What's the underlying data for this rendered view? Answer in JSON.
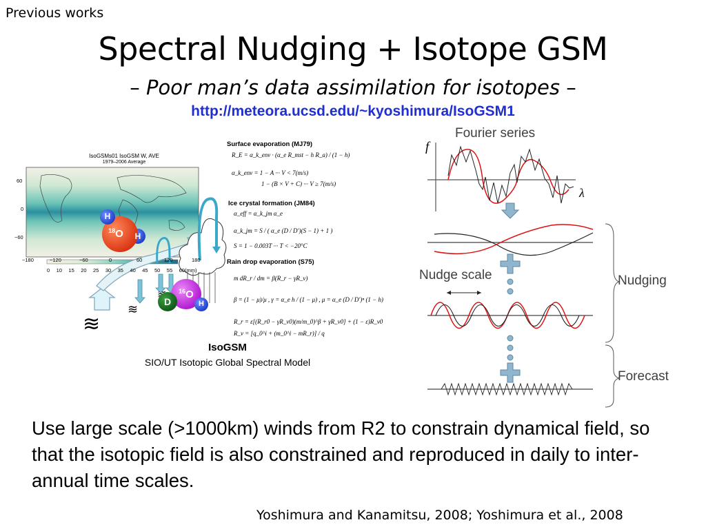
{
  "header": {
    "previous": "Previous works",
    "title": "Spectral Nudging + Isotope GSM",
    "subtitle_dash_left": "–",
    "subtitle_italic": "Poor man’s data assimilation for isotopes",
    "subtitle_dash_right": "–",
    "url": "http://meteora.ucsd.edu/~kyoshimura/IsoGSM1"
  },
  "map": {
    "title_line1": "IsoGSMs01 IsoGSM W, AVE",
    "title_line2": "1979–2006 Average",
    "lat_ticks": [
      "60",
      "0",
      "−60"
    ],
    "lon_ticks": [
      "−180",
      "−120",
      "−60",
      "0",
      "60",
      "120",
      "180"
    ],
    "colorbar_ticks": [
      "0",
      "10",
      "15",
      "20",
      "25",
      "30",
      "35",
      "40",
      "45",
      "50",
      "55",
      "60"
    ],
    "colorbar_unit": "(mm)"
  },
  "atoms": {
    "oxygen18": "O",
    "oxygen18_mass": "18",
    "hydrogen": "H",
    "oxygen16": "O",
    "oxygen16_mass": "16",
    "deuterium": "D"
  },
  "equations": {
    "surface_evap_head": "Surface evaporation (MJ79)",
    "surface_evap_1": "R_E = α_k_env · (α_e R_mst − h R_a) / (1 − h)",
    "surface_evap_2a": "α_k_env = 1 − A          ··· V < 7(m/s)",
    "surface_evap_2b": "1 − (B × V + C)     ··· V ≥ 7(m/s)",
    "ice_head": "Ice crystal formation (JM84)",
    "ice_1": "α_eff = α_k_jm α_e",
    "ice_2": "α_k_jm = S / ( α_e (D / D′)(S − 1) + 1 )",
    "ice_3": "S = 1 − 0.003T  ··· T < −20°C",
    "rain_head": "Rain drop evaporation (S75)",
    "rain_1": "m dR_r / dm = β(R_r − γR_v)",
    "rain_2": "β = (1 − μ)/μ ,  γ = α_e h / (1 − μ) ,  μ = α_e (D / D′)ⁿ (1 − h)",
    "rain_3": "R_r = ε[(R_r0 − γR_v0)(m/m_0)^β + γR_v0] + (1 − ε)R_v0",
    "rain_4": "R_v = [q_0^i + (m_0^i − mR_r)] / q"
  },
  "model": {
    "name": "IsoGSM",
    "description": "SIO/UT Isotopic Global Spectral Model"
  },
  "schematic": {
    "fourier_label": "Fourier series",
    "axis_f": "f",
    "axis_lambda": "λ",
    "nudge_scale_label": "Nudge scale",
    "nudging_label": "Nudging",
    "forecast_label": "Forecast"
  },
  "body": {
    "text": "Use large scale (>1000km) winds from R2 to constrain dynamical field, so that the isotopic field is also constrained and reproduced in daily to inter-annual time scales."
  },
  "citation": "Yoshimura and Kanamitsu, 2008; Yoshimura et al., 2008",
  "colors": {
    "url_blue": "#1f2fd0",
    "hydrogen_blue": "#2f4fd8",
    "oxygen_red": "#e8401a",
    "oxygen16_magenta": "#c61fe0",
    "deuterium_green": "#1d6e22",
    "nudge_red": "#e01010",
    "arrow_steel": "#7fa3b8"
  }
}
